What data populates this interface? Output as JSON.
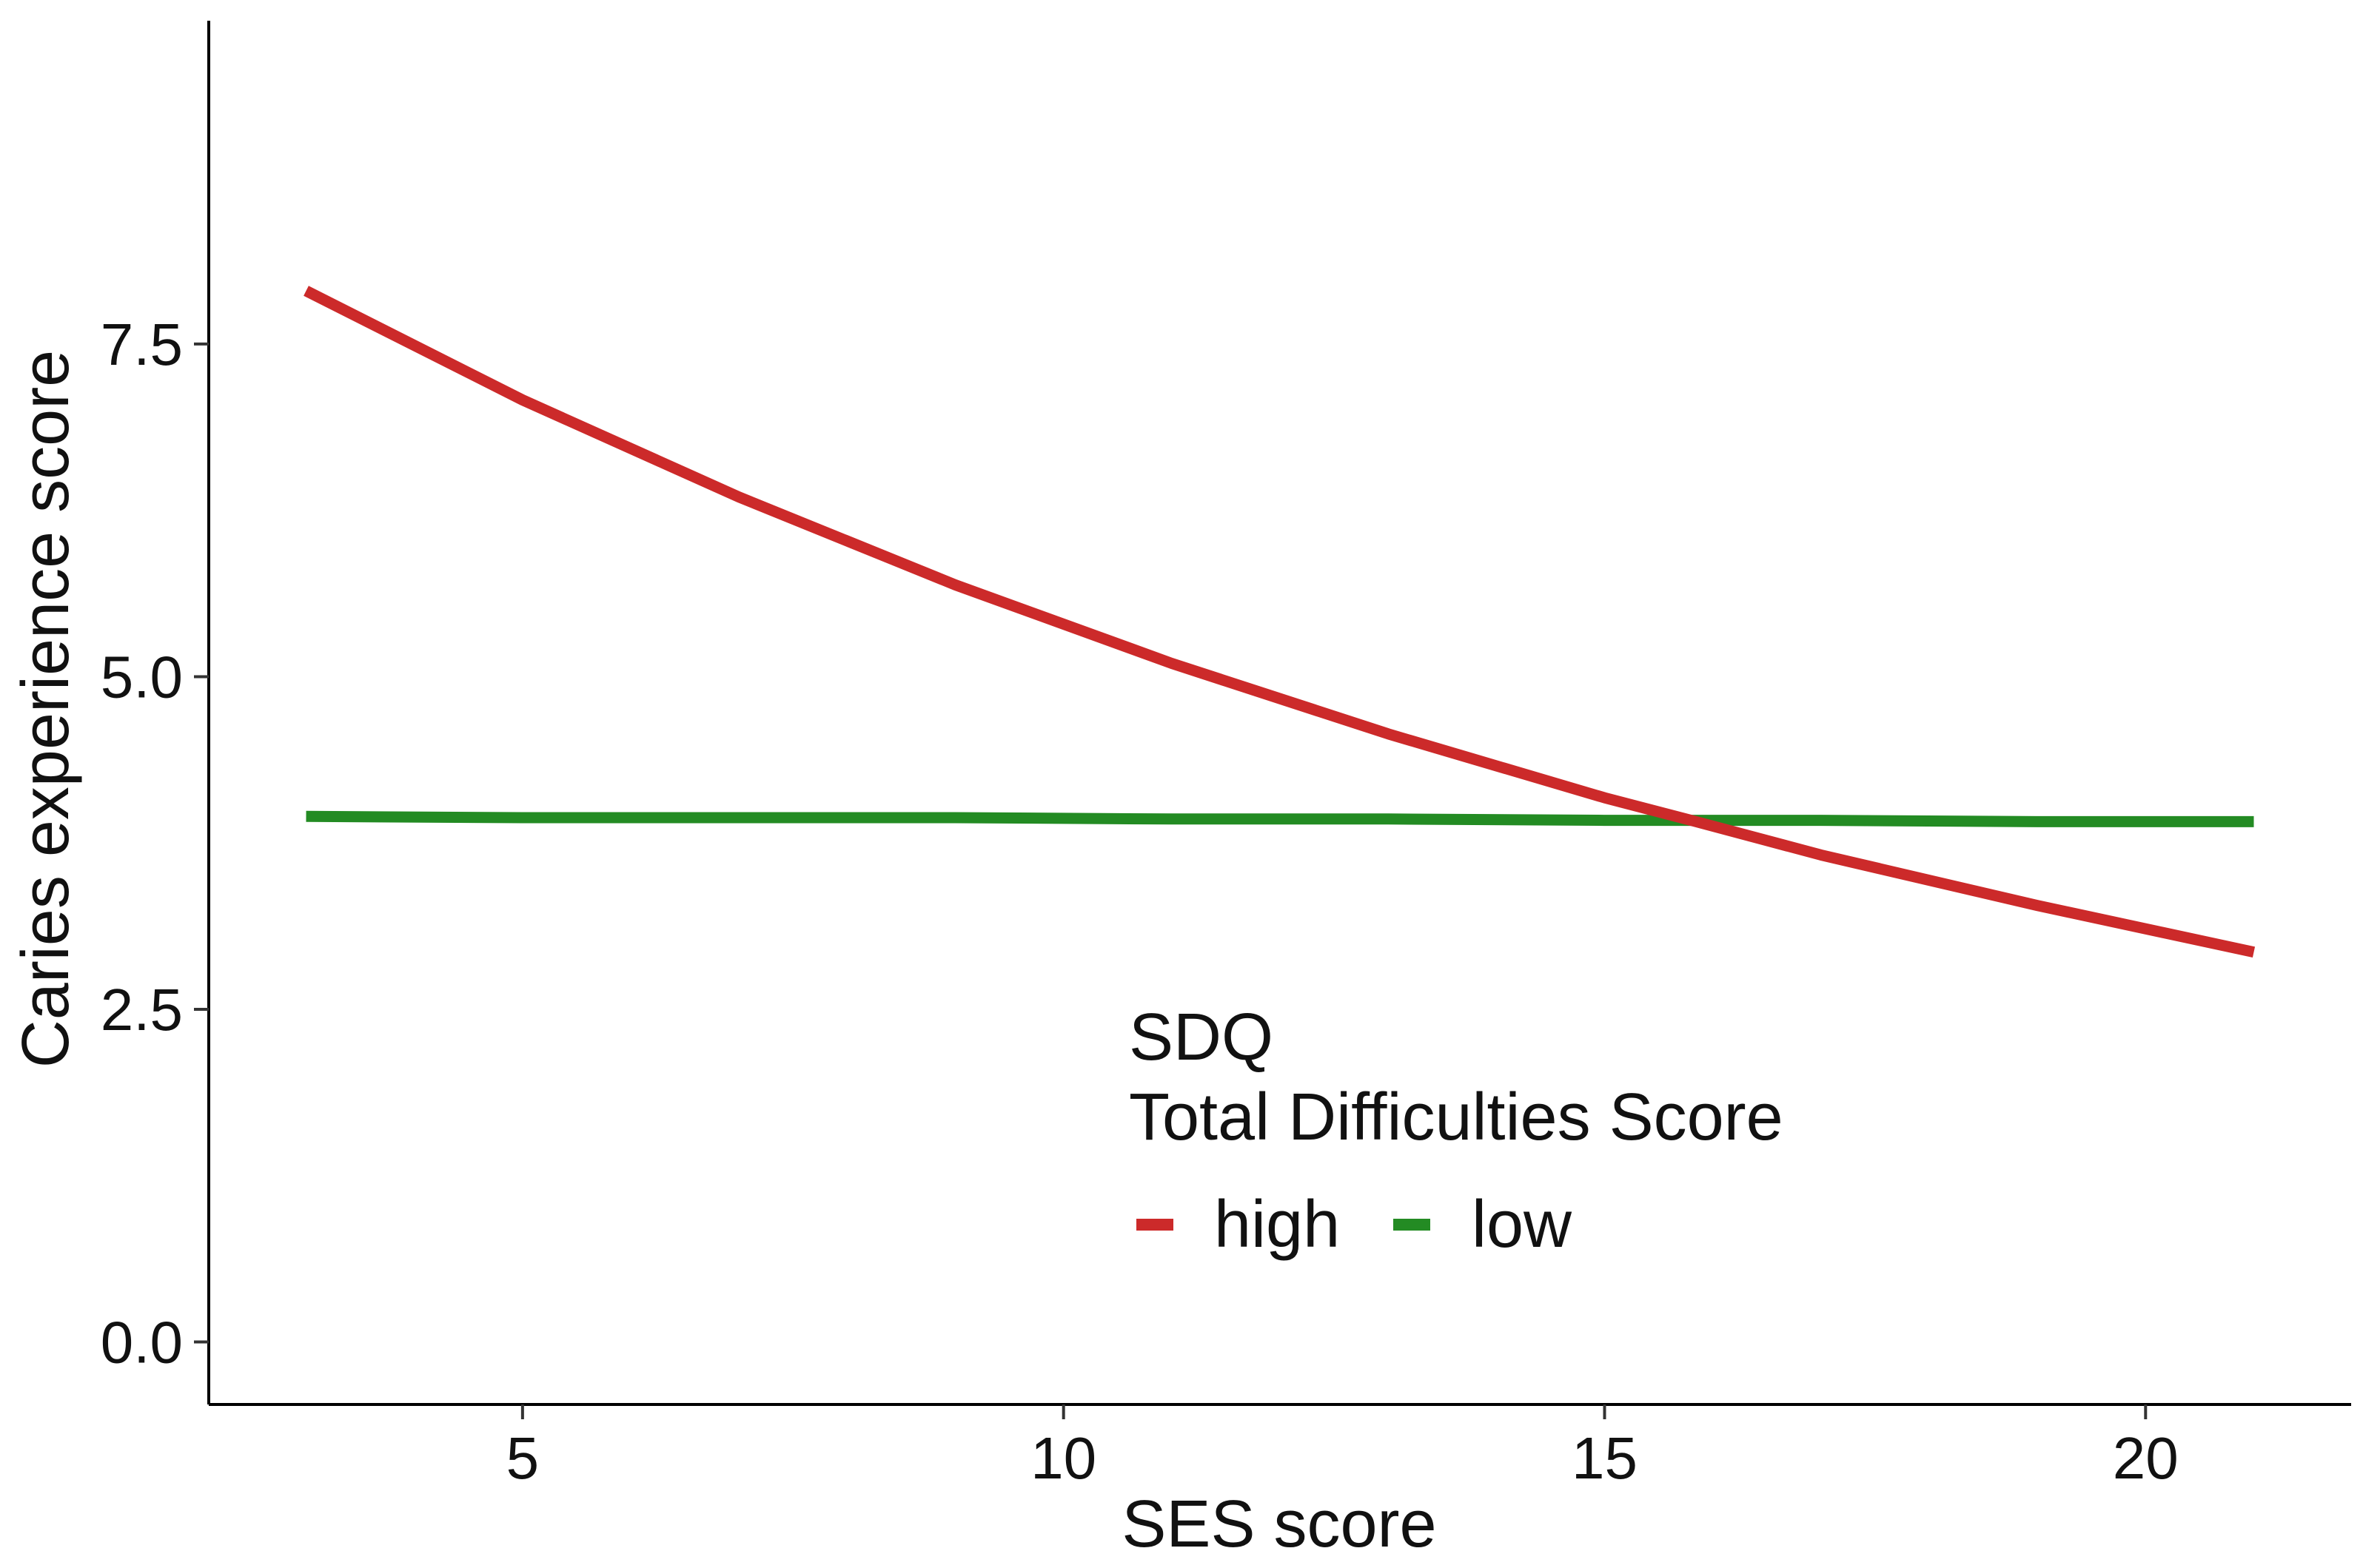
{
  "chart_data": {
    "type": "line",
    "title": "",
    "xlabel": "SES score",
    "ylabel": "Caries experience score",
    "xlim": [
      2.1,
      21.9
    ],
    "ylim": [
      -0.47,
      9.93
    ],
    "x_ticks": [
      5,
      10,
      15,
      20
    ],
    "x_tick_labels": [
      "5",
      "10",
      "15",
      "20"
    ],
    "y_ticks": [
      0,
      2.5,
      5,
      7.5
    ],
    "y_tick_labels": [
      "0.0",
      "2.5",
      "5.0",
      "7.5"
    ],
    "grid": false,
    "legend": {
      "position": "bottom-center",
      "title_lines": [
        "SDQ",
        "Total Difficulties Score"
      ],
      "entries": [
        "high",
        "low"
      ]
    },
    "series": [
      {
        "name": "high",
        "color": "#cc2a2a",
        "x": [
          3,
          5,
          7,
          9,
          11,
          13,
          15,
          15.8,
          17,
          19,
          21
        ],
        "y": [
          7.9,
          7.08,
          6.35,
          5.69,
          5.1,
          4.57,
          4.09,
          3.92,
          3.66,
          3.28,
          2.93
        ]
      },
      {
        "name": "low",
        "color": "#238b23",
        "x": [
          3,
          5,
          7,
          9,
          11,
          13,
          15,
          17,
          19,
          21
        ],
        "y": [
          3.95,
          3.94,
          3.94,
          3.94,
          3.93,
          3.93,
          3.92,
          3.92,
          3.91,
          3.91
        ]
      }
    ]
  }
}
